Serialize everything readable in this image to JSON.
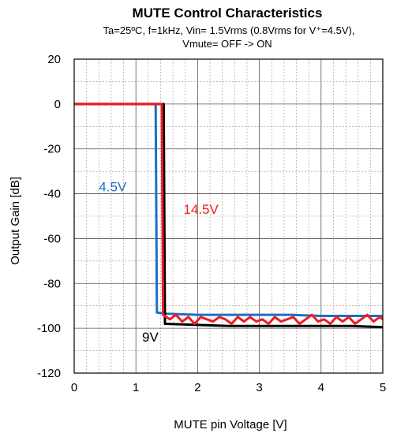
{
  "chart_data": {
    "type": "line",
    "title": "MUTE Control Characteristics",
    "subtitle_line1": "Ta=25ºC, f=1kHz, Vin= 1.5Vrms (0.8Vrms for V⁺=4.5V),",
    "subtitle_line2": "Vmute= OFF -> ON",
    "xlabel": "MUTE pin Voltage [V]",
    "ylabel": "Output Gain  [dB]",
    "xlim": [
      0,
      5
    ],
    "ylim": [
      -120,
      20
    ],
    "x_ticks": [
      0,
      1,
      2,
      3,
      4,
      5
    ],
    "y_ticks": [
      20,
      0,
      -20,
      -40,
      -60,
      -80,
      -100,
      -120
    ],
    "grid": true,
    "series": [
      {
        "name": "4.5V",
        "color": "#1f6fc0",
        "label_pos": [
          0.4,
          -39
        ],
        "points": [
          [
            0,
            0
          ],
          [
            1.32,
            0
          ],
          [
            1.34,
            -93
          ],
          [
            1.5,
            -93.5
          ],
          [
            2.0,
            -94
          ],
          [
            2.5,
            -94
          ],
          [
            3.0,
            -94
          ],
          [
            3.5,
            -94
          ],
          [
            4.0,
            -94.5
          ],
          [
            4.5,
            -94.5
          ],
          [
            5.0,
            -94.5
          ]
        ]
      },
      {
        "name": "14.5V",
        "color": "#ee1c24",
        "label_pos": [
          1.77,
          -49
        ],
        "points": [
          [
            0,
            0
          ],
          [
            1.42,
            0
          ],
          [
            1.44,
            -94
          ],
          [
            1.55,
            -96
          ],
          [
            1.65,
            -94
          ],
          [
            1.75,
            -97
          ],
          [
            1.85,
            -95
          ],
          [
            1.95,
            -98
          ],
          [
            2.05,
            -95
          ],
          [
            2.15,
            -96
          ],
          [
            2.25,
            -97
          ],
          [
            2.35,
            -95
          ],
          [
            2.45,
            -96
          ],
          [
            2.55,
            -98
          ],
          [
            2.65,
            -95
          ],
          [
            2.75,
            -97
          ],
          [
            2.85,
            -95
          ],
          [
            2.95,
            -97
          ],
          [
            3.05,
            -96
          ],
          [
            3.15,
            -98
          ],
          [
            3.25,
            -95
          ],
          [
            3.35,
            -97
          ],
          [
            3.45,
            -96
          ],
          [
            3.55,
            -95
          ],
          [
            3.65,
            -98
          ],
          [
            3.75,
            -96
          ],
          [
            3.85,
            -94
          ],
          [
            3.95,
            -97
          ],
          [
            4.05,
            -96
          ],
          [
            4.15,
            -98
          ],
          [
            4.25,
            -95
          ],
          [
            4.35,
            -97
          ],
          [
            4.45,
            -95
          ],
          [
            4.55,
            -98
          ],
          [
            4.65,
            -96
          ],
          [
            4.75,
            -94
          ],
          [
            4.85,
            -97
          ],
          [
            4.95,
            -95
          ],
          [
            5.0,
            -96
          ]
        ]
      },
      {
        "name": "9V",
        "color": "#000000",
        "label_pos": [
          1.1,
          -106
        ],
        "points": [
          [
            0,
            0
          ],
          [
            1.45,
            0
          ],
          [
            1.47,
            -98
          ],
          [
            2.0,
            -98.5
          ],
          [
            2.5,
            -99
          ],
          [
            3.0,
            -99
          ],
          [
            3.5,
            -99
          ],
          [
            4.0,
            -99
          ],
          [
            4.5,
            -99
          ],
          [
            5.0,
            -99.5
          ]
        ]
      }
    ]
  }
}
